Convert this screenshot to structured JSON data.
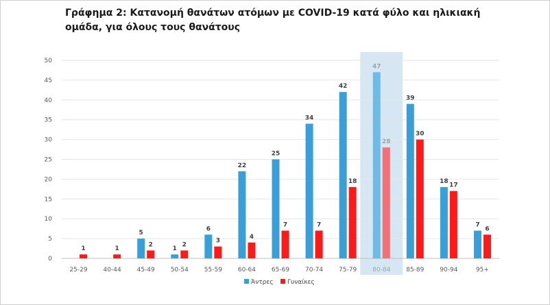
{
  "title": "Γράφημα 2: Κατανομή θανάτων ατόμων με COVID-19 κατά φύλο και ηλικιακή ομάδα, για όλους τους θανάτους",
  "chart_data": {
    "type": "bar",
    "categories": [
      "25-29",
      "40-44",
      "45-49",
      "50-54",
      "55-59",
      "60-64",
      "65-69",
      "70-74",
      "75-79",
      "80-84",
      "85-89",
      "90-94",
      "95+"
    ],
    "series": [
      {
        "name": "Άντρες",
        "color": "#3a9fd8",
        "values": [
          0,
          0,
          5,
          1,
          6,
          22,
          25,
          34,
          42,
          47,
          39,
          18,
          7
        ],
        "labels": [
          null,
          null,
          5,
          1,
          6,
          22,
          25,
          34,
          42,
          47,
          39,
          18,
          7
        ]
      },
      {
        "name": "Γυναίκες",
        "color": "#ff1a1a",
        "values": [
          1,
          1,
          2,
          2,
          3,
          4,
          7,
          7,
          18,
          28,
          30,
          17,
          6
        ],
        "labels": [
          1,
          1,
          2,
          2,
          3,
          4,
          7,
          7,
          18,
          28,
          30,
          17,
          6
        ]
      }
    ],
    "ylim": [
      0,
      50
    ],
    "yticks": [
      0,
      5,
      10,
      15,
      20,
      25,
      30,
      35,
      40,
      45,
      50
    ],
    "grid": true,
    "highlighted_category": "80-84",
    "highlight_color": "#d6e7f3",
    "legend_position": "bottom"
  }
}
